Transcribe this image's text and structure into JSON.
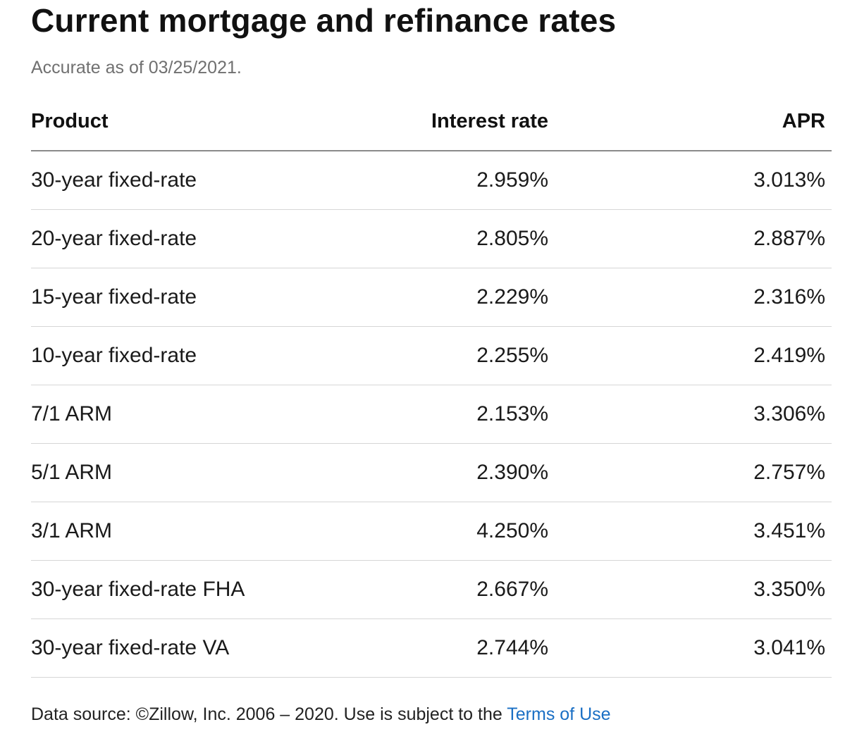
{
  "title": "Current mortgage and refinance rates",
  "subtitle": "Accurate as of 03/25/2021.",
  "table": {
    "headers": {
      "product": "Product",
      "interest_rate": "Interest rate",
      "apr": "APR"
    },
    "rows": [
      {
        "product": "30-year fixed-rate",
        "interest_rate": "2.959%",
        "apr": "3.013%"
      },
      {
        "product": "20-year fixed-rate",
        "interest_rate": "2.805%",
        "apr": "2.887%"
      },
      {
        "product": "15-year fixed-rate",
        "interest_rate": "2.229%",
        "apr": "2.316%"
      },
      {
        "product": "10-year fixed-rate",
        "interest_rate": "2.255%",
        "apr": "2.419%"
      },
      {
        "product": "7/1 ARM",
        "interest_rate": "2.153%",
        "apr": "3.306%"
      },
      {
        "product": "5/1 ARM",
        "interest_rate": "2.390%",
        "apr": "2.757%"
      },
      {
        "product": "3/1 ARM",
        "interest_rate": "4.250%",
        "apr": "3.451%"
      },
      {
        "product": "30-year fixed-rate FHA",
        "interest_rate": "2.667%",
        "apr": "3.350%"
      },
      {
        "product": "30-year fixed-rate VA",
        "interest_rate": "2.744%",
        "apr": "3.041%"
      }
    ]
  },
  "footer": {
    "text": "Data source: ©Zillow, Inc. 2006 – 2020. Use is subject to the ",
    "link_label": "Terms of Use"
  },
  "colors": {
    "link": "#1a6fc4",
    "subtitle": "#707070"
  }
}
